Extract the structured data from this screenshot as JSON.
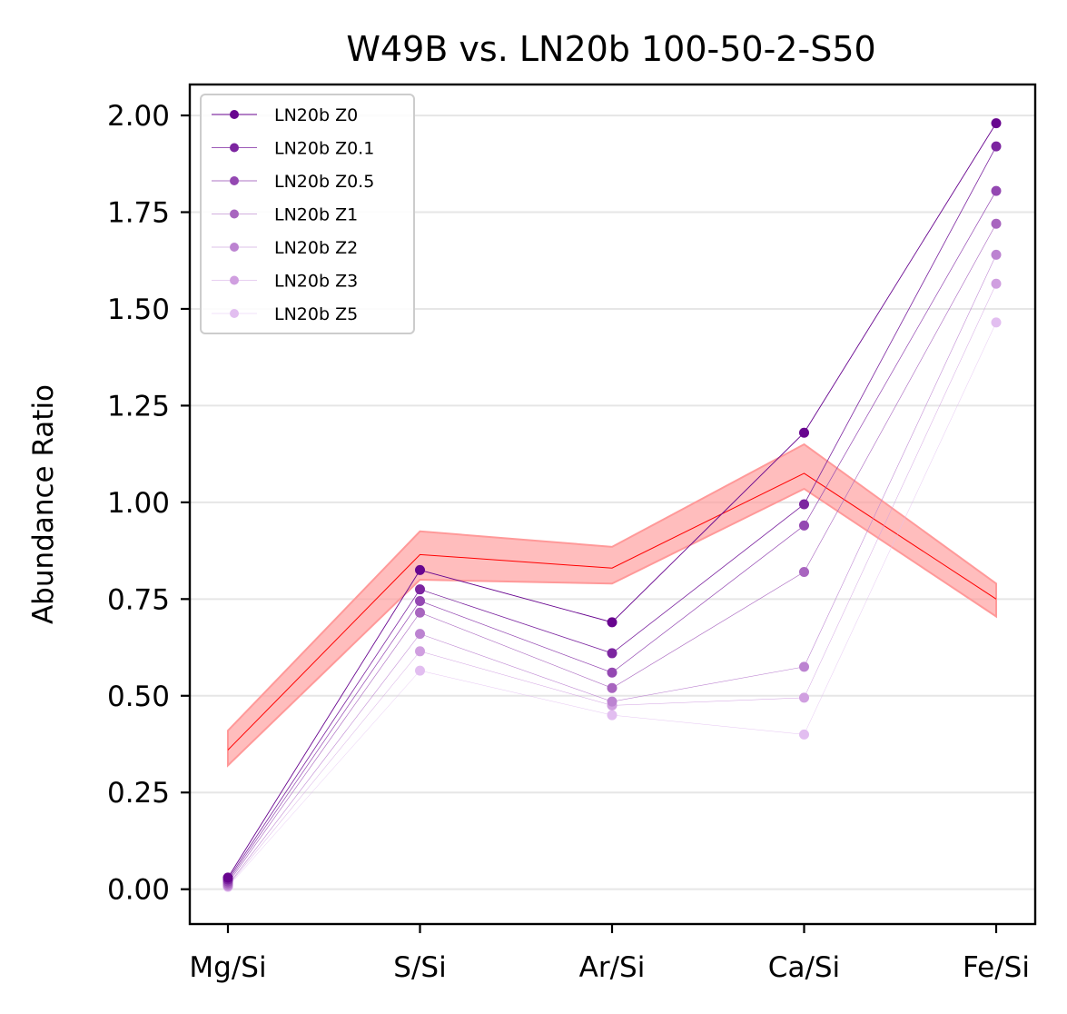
{
  "chart_data": {
    "type": "line",
    "title": "W49B vs. LN20b 100-50-2-S50",
    "xlabel": "",
    "ylabel": "Abundance Ratio",
    "categories": [
      "Mg/Si",
      "S/Si",
      "Ar/Si",
      "Ca/Si",
      "Fe/Si"
    ],
    "ylim": [
      -0.09,
      2.08
    ],
    "yticks": [
      0.0,
      0.25,
      0.5,
      0.75,
      1.0,
      1.25,
      1.5,
      1.75,
      2.0
    ],
    "ytick_labels": [
      "0.00",
      "0.25",
      "0.50",
      "0.75",
      "1.00",
      "1.25",
      "1.50",
      "1.75",
      "2.00"
    ],
    "grid": "horizontal",
    "legend_position": "top-left",
    "observed": {
      "color": "#ff0000",
      "band_color": "#ff9999",
      "values": [
        0.36,
        0.865,
        0.83,
        1.075,
        0.75
      ],
      "lower": [
        0.32,
        0.8,
        0.79,
        1.035,
        0.705
      ],
      "upper": [
        0.41,
        0.925,
        0.885,
        1.15,
        0.79
      ]
    },
    "series": [
      {
        "name": "LN20b Z0",
        "color": "#68058f",
        "values": [
          0.03,
          0.825,
          0.69,
          1.18,
          1.98
        ]
      },
      {
        "name": "LN20b Z0.1",
        "color": "#7c25a0",
        "values": [
          0.025,
          0.775,
          0.61,
          0.995,
          1.92
        ]
      },
      {
        "name": "LN20b Z0.5",
        "color": "#9448b2",
        "values": [
          0.02,
          0.745,
          0.56,
          0.94,
          1.805
        ]
      },
      {
        "name": "LN20b Z1",
        "color": "#a865bf",
        "values": [
          0.015,
          0.715,
          0.52,
          0.82,
          1.72
        ]
      },
      {
        "name": "LN20b Z2",
        "color": "#bc83d1",
        "values": [
          0.01,
          0.66,
          0.485,
          0.575,
          1.64
        ]
      },
      {
        "name": "LN20b Z3",
        "color": "#d09fe0",
        "values": [
          0.008,
          0.615,
          0.475,
          0.495,
          1.565
        ]
      },
      {
        "name": "LN20b Z5",
        "color": "#e2bef0",
        "values": [
          0.006,
          0.565,
          0.45,
          0.4,
          1.465
        ]
      }
    ]
  }
}
